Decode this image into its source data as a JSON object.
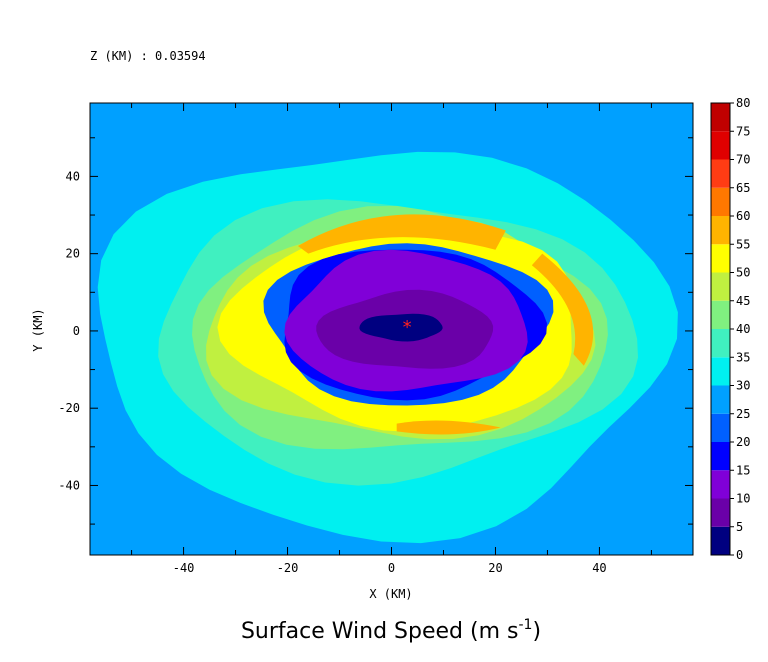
{
  "chart_data": {
    "type": "heatmap",
    "header": "Z (KM) : 0.03594",
    "title": "Surface Wind Speed (m s",
    "title_superscript": "-1",
    "title_close": ")",
    "xlabel": "X (KM)",
    "ylabel": "Y (KM)",
    "xlim": [
      -58,
      58
    ],
    "ylim": [
      -58,
      59
    ],
    "x_ticks": [
      -40,
      -20,
      0,
      20,
      40
    ],
    "x_tick_labels": [
      "-40",
      "-20",
      "0",
      "20",
      "40"
    ],
    "y_ticks": [
      -40,
      -20,
      0,
      20,
      40
    ],
    "y_tick_labels": [
      "-40",
      "-20",
      "0",
      "20",
      "40"
    ],
    "grid": false,
    "colorbar": {
      "levels": [
        0,
        5,
        10,
        15,
        20,
        25,
        30,
        35,
        40,
        45,
        50,
        55,
        60,
        65,
        70,
        75,
        80
      ],
      "labels": [
        "0",
        "5",
        "10",
        "15",
        "20",
        "25",
        "30",
        "35",
        "40",
        "45",
        "50",
        "55",
        "60",
        "65",
        "70",
        "75",
        "80"
      ],
      "colors": [
        "#000080",
        "#6a00a8",
        "#8000d8",
        "#0000ff",
        "#0060ff",
        "#00a0ff",
        "#00f0f0",
        "#40f0c0",
        "#80f080",
        "#c0f040",
        "#ffff00",
        "#ffb400",
        "#ff7800",
        "#ff3c14",
        "#e00000",
        "#c00000"
      ]
    },
    "background_level_color": "#00a0ff",
    "contour_regions": [
      {
        "speed_band": "30-35",
        "color": "#00f0f0",
        "center": [
          -2,
          -2
        ],
        "radii": [
          55,
          50
        ]
      },
      {
        "speed_band": "35-40",
        "color": "#40f0c0",
        "center": [
          0,
          -2
        ],
        "radii": [
          46,
          36
        ]
      },
      {
        "speed_band": "40-45",
        "color": "#80f080",
        "center": [
          1,
          -1
        ],
        "radii": [
          40,
          31
        ]
      },
      {
        "speed_band": "45-50",
        "color": "#c0f040",
        "center": [
          2,
          0
        ],
        "radii": [
          37,
          28
        ]
      },
      {
        "speed_band": "50-55",
        "color": "#ffff00",
        "center": [
          3,
          1
        ],
        "radii": [
          34,
          26
        ]
      },
      {
        "speed_band": "20-25",
        "color": "#0060ff",
        "center": [
          3,
          2
        ],
        "radii": [
          27,
          21
        ]
      },
      {
        "speed_band": "15-20",
        "color": "#0000ff",
        "center": [
          3,
          2
        ],
        "radii": [
          25,
          19.5
        ]
      },
      {
        "speed_band": "10-15",
        "color": "#8000d8",
        "center": [
          3,
          2
        ],
        "radii": [
          23,
          18
        ]
      },
      {
        "speed_band": "5-10",
        "color": "#6a00a8",
        "center": [
          3,
          0
        ],
        "radii": [
          17,
          10
        ]
      },
      {
        "speed_band": "0-5",
        "color": "#000080",
        "center": [
          2,
          1
        ],
        "radii": [
          8,
          3.5
        ]
      }
    ],
    "wind_maxima_bands": [
      {
        "speed_band": "55-60",
        "color": "#ffb400",
        "location": "north arc",
        "center": [
          8,
          24
        ]
      },
      {
        "speed_band": "55-60",
        "color": "#ffb400",
        "location": "east arc",
        "center": [
          36,
          5
        ]
      },
      {
        "speed_band": "55-60",
        "color": "#ffb400",
        "location": "south",
        "center": [
          8,
          -26
        ]
      }
    ],
    "storm_center_marker": {
      "symbol": "*",
      "x": 3,
      "y": 1,
      "color": "#ff2020"
    }
  }
}
